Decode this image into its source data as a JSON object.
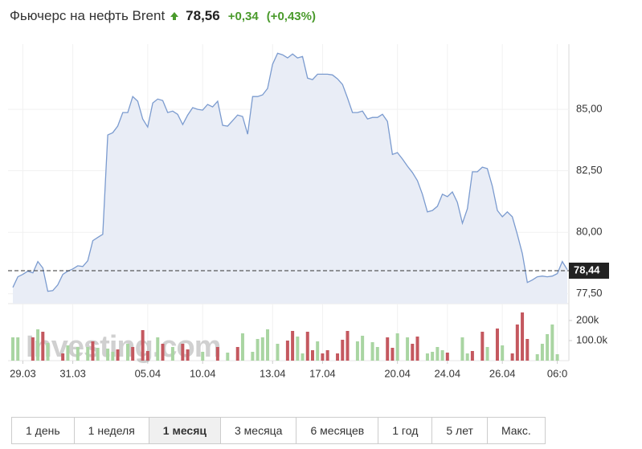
{
  "header": {
    "title": "Фьючерс на нефть Brent",
    "price": "78,56",
    "change": "+0,34",
    "change_pct": "(+0,43%)"
  },
  "chart_data": {
    "type": "line",
    "categories": [
      null,
      null,
      "29.03",
      null,
      null,
      null,
      null,
      null,
      null,
      null,
      null,
      null,
      "31.03",
      null,
      null,
      null,
      null,
      null,
      null,
      null,
      null,
      null,
      null,
      null,
      null,
      null,
      null,
      "05.04",
      null,
      null,
      null,
      null,
      null,
      null,
      null,
      null,
      null,
      null,
      "10.04",
      null,
      null,
      null,
      null,
      null,
      null,
      null,
      null,
      null,
      null,
      null,
      null,
      null,
      "13.04",
      null,
      null,
      null,
      null,
      null,
      null,
      null,
      null,
      null,
      "17.04",
      null,
      null,
      null,
      null,
      null,
      null,
      null,
      null,
      null,
      null,
      null,
      null,
      null,
      null,
      "20.04",
      null,
      null,
      null,
      null,
      null,
      null,
      null,
      null,
      null,
      "24.04",
      null,
      null,
      null,
      null,
      null,
      null,
      null,
      null,
      null,
      null,
      "26.04",
      null,
      null,
      null,
      null,
      null,
      null,
      null,
      null,
      null,
      null,
      "06:0",
      null,
      null
    ],
    "series": [
      {
        "color": "#7b9bcf",
        "values": [
          77.76,
          78.19,
          78.29,
          78.42,
          78.35,
          78.81,
          78.55,
          77.6,
          77.63,
          77.86,
          78.29,
          78.42,
          78.51,
          78.64,
          78.61,
          78.84,
          79.66,
          79.79,
          79.92,
          83.96,
          84.05,
          84.32,
          84.87,
          84.87,
          85.52,
          85.33,
          84.61,
          84.28,
          85.26,
          85.42,
          85.36,
          84.87,
          84.93,
          84.8,
          84.38,
          84.77,
          85.07,
          85.0,
          84.97,
          85.2,
          85.1,
          85.33,
          84.35,
          84.32,
          84.54,
          84.77,
          84.71,
          83.99,
          85.52,
          85.52,
          85.59,
          85.85,
          86.83,
          87.28,
          87.22,
          87.09,
          87.25,
          87.09,
          87.15,
          86.27,
          86.21,
          86.43,
          86.43,
          86.43,
          86.4,
          86.24,
          86.01,
          85.46,
          84.87,
          84.87,
          84.93,
          84.61,
          84.67,
          84.67,
          84.8,
          84.51,
          83.17,
          83.24,
          82.98,
          82.69,
          82.43,
          82.1,
          81.55,
          80.83,
          80.89,
          81.06,
          81.55,
          81.45,
          81.64,
          81.22,
          80.37,
          80.96,
          82.46,
          82.46,
          82.65,
          82.59,
          81.87,
          80.89,
          80.63,
          80.83,
          80.63,
          79.92,
          79.13,
          77.96,
          78.06,
          78.19,
          78.22,
          78.19,
          78.22,
          78.32,
          78.81,
          78.48
        ]
      }
    ],
    "ylim": [
      77.1,
      87.65
    ],
    "yticks": [
      {
        "value": 77.5,
        "label": "77,50"
      },
      {
        "value": 80,
        "label": "80,00"
      },
      {
        "value": 82.5,
        "label": "82,50"
      },
      {
        "value": 85,
        "label": "85,00"
      }
    ],
    "last_price": {
      "value": 78.44,
      "label": "78,44"
    },
    "grid": true,
    "volume": {
      "values": [
        116000,
        116000,
        null,
        null,
        116000,
        156000,
        144000,
        88000,
        null,
        null,
        36000,
        76000,
        null,
        68000,
        null,
        68000,
        96000,
        64000,
        null,
        60000,
        44000,
        56000,
        null,
        84000,
        68000,
        null,
        152000,
        48000,
        null,
        116000,
        84000,
        null,
        68000,
        null,
        84000,
        56000,
        null,
        null,
        44000,
        null,
        null,
        68000,
        null,
        40000,
        null,
        68000,
        136000,
        null,
        44000,
        108000,
        116000,
        156000,
        null,
        84000,
        null,
        100000,
        148000,
        120000,
        36000,
        144000,
        52000,
        96000,
        36000,
        52000,
        null,
        36000,
        104000,
        148000,
        null,
        96000,
        124000,
        null,
        92000,
        68000,
        null,
        116000,
        64000,
        136000,
        null,
        116000,
        84000,
        120000,
        null,
        36000,
        44000,
        68000,
        52000,
        40000,
        null,
        null,
        116000,
        36000,
        48000,
        null,
        144000,
        68000,
        null,
        160000,
        76000,
        null,
        36000,
        180000,
        240000,
        108000,
        null,
        32000,
        84000,
        132000,
        180000,
        32000,
        null,
        null
      ],
      "colors": [
        "#a9d5a2",
        "#a9d5a2",
        null,
        null,
        "#c4585f",
        "#a9d5a2",
        "#c4585f",
        "#a9d5a2",
        null,
        null,
        "#c4585f",
        "#a9d5a2",
        null,
        "#a9d5a2",
        null,
        "#a9d5a2",
        "#c4585f",
        "#a9d5a2",
        null,
        "#a9d5a2",
        "#a9d5a2",
        "#c4585f",
        null,
        "#a9d5a2",
        "#c4585f",
        null,
        "#c4585f",
        "#c4585f",
        null,
        "#a9d5a2",
        "#c4585f",
        null,
        "#a9d5a2",
        null,
        "#c4585f",
        "#c4585f",
        null,
        null,
        "#a9d5a2",
        null,
        null,
        "#c4585f",
        null,
        "#a9d5a2",
        null,
        "#c4585f",
        "#a9d5a2",
        null,
        "#a9d5a2",
        "#a9d5a2",
        "#a9d5a2",
        "#a9d5a2",
        null,
        "#a9d5a2",
        null,
        "#c4585f",
        "#c4585f",
        "#a9d5a2",
        "#a9d5a2",
        "#c4585f",
        "#c4585f",
        "#a9d5a2",
        "#c4585f",
        "#c4585f",
        null,
        "#c4585f",
        "#c4585f",
        "#c4585f",
        null,
        "#a9d5a2",
        "#a9d5a2",
        null,
        "#a9d5a2",
        "#a9d5a2",
        null,
        "#c4585f",
        "#c4585f",
        "#a9d5a2",
        null,
        "#a9d5a2",
        "#c4585f",
        "#c4585f",
        null,
        "#a9d5a2",
        "#a9d5a2",
        "#a9d5a2",
        "#a9d5a2",
        "#c4585f",
        null,
        null,
        "#a9d5a2",
        "#a9d5a2",
        "#c4585f",
        null,
        "#c4585f",
        "#a9d5a2",
        null,
        "#c4585f",
        "#a9d5a2",
        null,
        "#c4585f",
        "#c4585f",
        "#c4585f",
        "#c4585f",
        null,
        "#a9d5a2",
        "#a9d5a2",
        "#a9d5a2",
        "#a9d5a2",
        "#a9d5a2",
        null,
        null
      ],
      "ylim": [
        0,
        276000
      ],
      "yticks": [
        {
          "value": 100000,
          "label": "100.0k"
        },
        {
          "value": 200000,
          "label": "200k"
        }
      ]
    },
    "watermark": "Investing.com"
  },
  "range_buttons": [
    "1 день",
    "1 неделя",
    "1 месяц",
    "3 месяца",
    "6 месяцев",
    "1 год",
    "5 лет",
    "Макс."
  ],
  "active_range_index": 2
}
